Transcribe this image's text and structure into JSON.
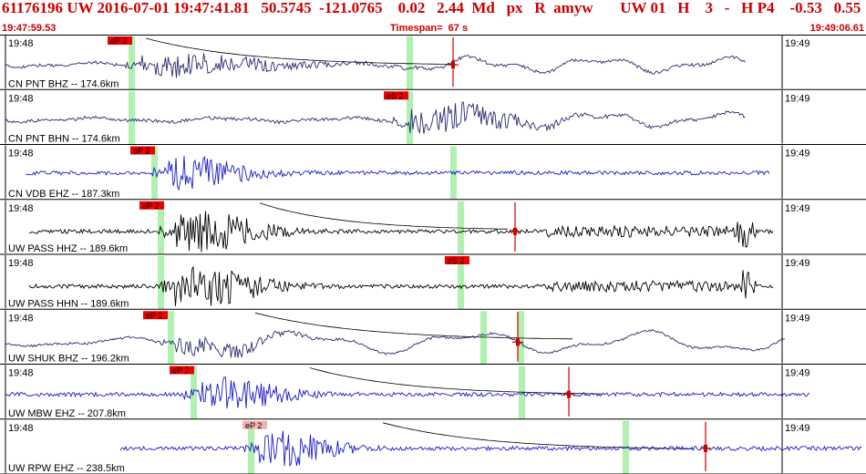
{
  "header": {
    "event_line": "61176196 UW 2016-07-01 19:47:41.81   50.5745  -121.0765    0.02   2.44  Md   px   R  amyw       UW 01   H    3   -   H P4    -0.53   0.55",
    "start_time": "19:47:59.53",
    "timespan": "Timespan=  67 s",
    "end_time": "19:49:06.61"
  },
  "time_labels": {
    "left": "19:48",
    "right": "19:49"
  },
  "colors": {
    "header_text": "#cc0000",
    "trace_blue": "#1a1acc",
    "trace_navy": "#2a2a6e",
    "trace_black": "#000000",
    "pick_bar": "#b0f0b0",
    "pick_flag": "#ee0000",
    "pick_flag_faded": "#f4b0b0",
    "marker": "#cc0000"
  },
  "traces": [
    {
      "label": "CN PNT BHZ -- 174.6km",
      "color": "navy",
      "pick": "eP 2",
      "pick_faded": false
    },
    {
      "label": "CN PNT BHN -- 174.6km",
      "color": "navy",
      "pick": "eS 2",
      "pick_faded": false
    },
    {
      "label": "CN VDB EHZ -- 187.3km",
      "color": "blue",
      "pick": "eP 2",
      "pick_faded": false
    },
    {
      "label": "UW PASS HHZ -- 189.6km",
      "color": "black",
      "pick": "eP 2",
      "pick_faded": false
    },
    {
      "label": "UW PASS HHN -- 189.6km",
      "color": "black",
      "pick": "eS 2",
      "pick_faded": false
    },
    {
      "label": "UW SHUK BHZ -- 196.2km",
      "color": "navy",
      "pick": "eP 2",
      "pick_faded": false
    },
    {
      "label": "UW MBW EHZ -- 207.8km",
      "color": "blue",
      "pick": "eP 2",
      "pick_faded": false
    },
    {
      "label": "UW RPW EHZ -- 238.5km",
      "color": "blue",
      "pick": "eP 2",
      "pick_faded": true
    }
  ]
}
